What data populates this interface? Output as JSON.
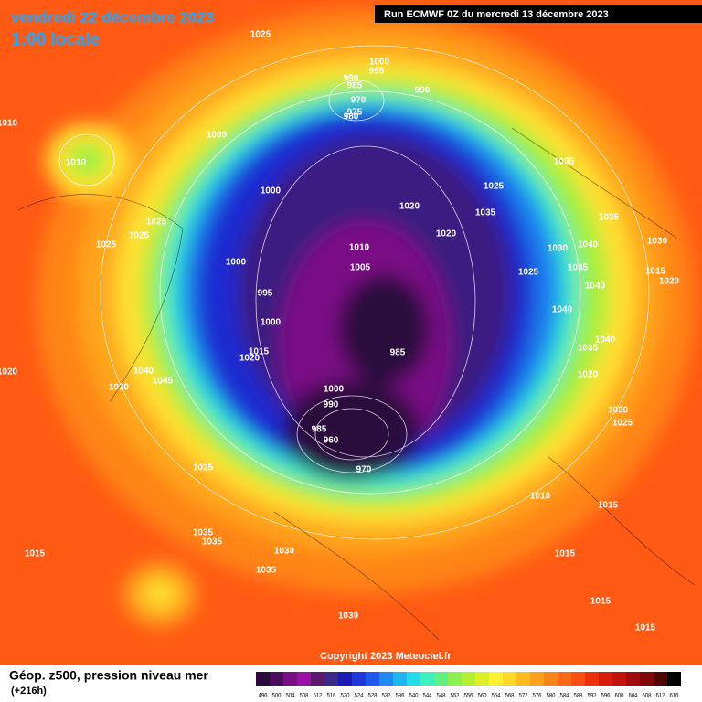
{
  "header": {
    "date": "vendredi 22 décembre 2023",
    "time": "1:00 locale",
    "run": "Run ECMWF 0Z du mercredi 13 décembre 2023"
  },
  "copyright": "Copyright 2023 Meteociel.fr",
  "legend": {
    "label": "Géop. z500, pression niveau mer",
    "lead_time": "(+216h)",
    "values": [
      496,
      500,
      504,
      508,
      512,
      516,
      520,
      524,
      528,
      532,
      536,
      540,
      544,
      548,
      552,
      556,
      560,
      564,
      568,
      572,
      576,
      580,
      584,
      588,
      592,
      596,
      600,
      604,
      608,
      612,
      616
    ],
    "colors": [
      "#2b0a3d",
      "#4b0c5e",
      "#7a0f85",
      "#9b11a5",
      "#5a1a6e",
      "#3a2a8a",
      "#1a1ab4",
      "#1c38d8",
      "#1e58f0",
      "#1e88f5",
      "#20b4f0",
      "#24dce8",
      "#3cf0c0",
      "#60f080",
      "#8cf050",
      "#b4f030",
      "#dcf028",
      "#fff030",
      "#ffd828",
      "#ffbc20",
      "#ffa01c",
      "#ff8418",
      "#ff6814",
      "#ff4c10",
      "#f0300c",
      "#d81c0c",
      "#c0140c",
      "#a00c0c",
      "#800808",
      "#500404",
      "#000000"
    ]
  },
  "isobar_labels": [
    "1025",
    "1000",
    "995",
    "990",
    "985",
    "970",
    "975",
    "980",
    "990",
    "1010",
    "1000",
    "1010",
    "1035",
    "1025",
    "1000",
    "1020",
    "1035",
    "1025",
    "1035",
    "1025",
    "1020",
    "1025",
    "1010",
    "1030",
    "1040",
    "1030",
    "1000",
    "1005",
    "1025",
    "1035",
    "1015",
    "1020",
    "1040",
    "995",
    "1000",
    "1040",
    "985",
    "1040",
    "1035",
    "1015",
    "1020",
    "1040",
    "1020",
    "1045",
    "1030",
    "1020",
    "1000",
    "990",
    "1030",
    "1025",
    "985",
    "960",
    "970",
    "1025",
    "1010",
    "1015",
    "1035",
    "1035",
    "1015",
    "1030",
    "1015",
    "1035",
    "1015",
    "1030",
    "1015"
  ]
}
